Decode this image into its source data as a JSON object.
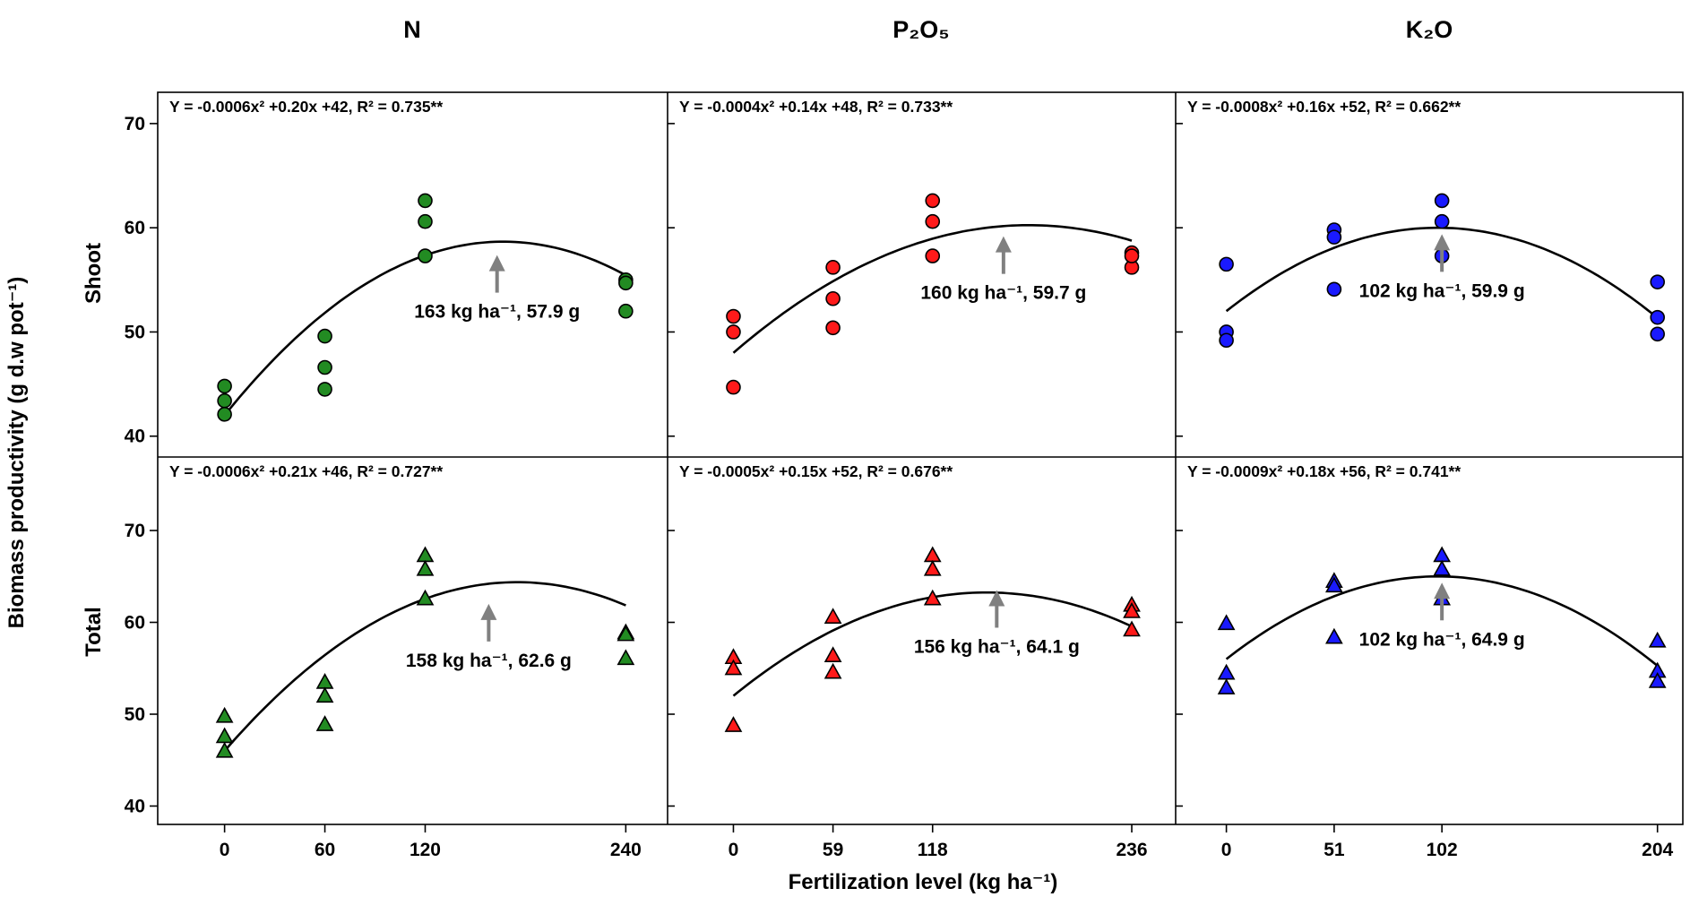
{
  "figure": {
    "ylabel": "Biomass productivity (g d.w pot⁻¹)",
    "xlabel": "Fertilization level (kg ha⁻¹)",
    "row_labels": [
      "Shoot",
      "Total"
    ],
    "column_titles": [
      "N",
      "P₂O₅",
      "K₂O"
    ]
  },
  "chart_data": [
    {
      "type": "scatter",
      "panel": "N-Shoot",
      "row_label": "Shoot",
      "column_title": "N",
      "marker": "circle",
      "color": "#228B22",
      "xticks": [
        0,
        60,
        120,
        240
      ],
      "xlim": [
        -40,
        265
      ],
      "ylim": [
        38,
        73
      ],
      "yticks": [
        40,
        50,
        60,
        70
      ],
      "points": [
        [
          0,
          44.8
        ],
        [
          0,
          43.4
        ],
        [
          0,
          42.1
        ],
        [
          60,
          49.6
        ],
        [
          60,
          46.6
        ],
        [
          60,
          44.5
        ],
        [
          120,
          62.6
        ],
        [
          120,
          60.6
        ],
        [
          120,
          57.3
        ],
        [
          240,
          55.0
        ],
        [
          240,
          54.7
        ],
        [
          240,
          52.0
        ]
      ],
      "fit": {
        "a": -0.0006,
        "b": 0.2,
        "c": 42,
        "peak_x": 163,
        "peak_y": 57.9
      },
      "equation": "Y = -0.0006x² +0.20x +42, R² = 0.735**",
      "annotation": "163 kg ha⁻¹, 57.9 g"
    },
    {
      "type": "scatter",
      "panel": "P2O5-Shoot",
      "row_label": "Shoot",
      "column_title": "P₂O₅",
      "marker": "circle",
      "color": "#FF1A1A",
      "xticks": [
        0,
        59,
        118,
        236
      ],
      "xlim": [
        -39,
        262
      ],
      "ylim": [
        38,
        73
      ],
      "yticks": [
        40,
        50,
        60,
        70
      ],
      "points": [
        [
          0,
          51.5
        ],
        [
          0,
          50.0
        ],
        [
          0,
          44.7
        ],
        [
          59,
          56.2
        ],
        [
          59,
          53.2
        ],
        [
          59,
          50.4
        ],
        [
          118,
          62.6
        ],
        [
          118,
          60.6
        ],
        [
          118,
          57.3
        ],
        [
          236,
          57.6
        ],
        [
          236,
          56.2
        ],
        [
          236,
          57.3
        ]
      ],
      "fit": {
        "a": -0.0004,
        "b": 0.14,
        "c": 48,
        "peak_x": 160,
        "peak_y": 59.7
      },
      "equation": "Y = -0.0004x² +0.14x +48, R² = 0.733**",
      "annotation": "160 kg ha⁻¹, 59.7 g"
    },
    {
      "type": "scatter",
      "panel": "K2O-Shoot",
      "row_label": "Shoot",
      "column_title": "K₂O",
      "marker": "circle",
      "color": "#1A1AFF",
      "xticks": [
        0,
        51,
        102,
        204
      ],
      "xlim": [
        -24,
        216
      ],
      "ylim": [
        38,
        73
      ],
      "yticks": [
        40,
        50,
        60,
        70
      ],
      "points": [
        [
          0,
          56.5
        ],
        [
          0,
          50.0
        ],
        [
          0,
          49.2
        ],
        [
          51,
          59.8
        ],
        [
          51,
          59.1
        ],
        [
          51,
          54.1
        ],
        [
          102,
          62.6
        ],
        [
          102,
          60.6
        ],
        [
          102,
          57.3
        ],
        [
          204,
          54.8
        ],
        [
          204,
          51.4
        ],
        [
          204,
          49.8
        ]
      ],
      "fit": {
        "a": -0.0008,
        "b": 0.16,
        "c": 52,
        "peak_x": 102,
        "peak_y": 59.9
      },
      "equation": "Y = -0.0008x² +0.16x +52, R² = 0.662**",
      "annotation": "102 kg ha⁻¹, 59.9 g"
    },
    {
      "type": "scatter",
      "panel": "N-Total",
      "row_label": "Total",
      "column_title": "N",
      "marker": "triangle",
      "color": "#228B22",
      "xticks": [
        0,
        60,
        120,
        240
      ],
      "xlim": [
        -40,
        265
      ],
      "ylim": [
        38,
        78
      ],
      "yticks": [
        40,
        50,
        60,
        70
      ],
      "points": [
        [
          0,
          49.8
        ],
        [
          0,
          47.6
        ],
        [
          0,
          46.0
        ],
        [
          60,
          53.5
        ],
        [
          60,
          52.0
        ],
        [
          60,
          48.9
        ],
        [
          120,
          67.3
        ],
        [
          120,
          65.8
        ],
        [
          120,
          62.6
        ],
        [
          240,
          58.9
        ],
        [
          240,
          58.7
        ],
        [
          240,
          56.1
        ]
      ],
      "fit": {
        "a": -0.0006,
        "b": 0.21,
        "c": 46,
        "peak_x": 158,
        "peak_y": 62.6
      },
      "equation": "Y = -0.0006x² +0.21x +46, R² = 0.727**",
      "annotation": "158 kg ha⁻¹, 62.6 g"
    },
    {
      "type": "scatter",
      "panel": "P2O5-Total",
      "row_label": "Total",
      "column_title": "P₂O₅",
      "marker": "triangle",
      "color": "#FF1A1A",
      "xticks": [
        0,
        59,
        118,
        236
      ],
      "xlim": [
        -39,
        262
      ],
      "ylim": [
        38,
        78
      ],
      "yticks": [
        40,
        50,
        60,
        70
      ],
      "points": [
        [
          0,
          56.2
        ],
        [
          0,
          55.0
        ],
        [
          0,
          48.8
        ],
        [
          59,
          60.6
        ],
        [
          59,
          56.4
        ],
        [
          59,
          54.6
        ],
        [
          118,
          67.3
        ],
        [
          118,
          65.8
        ],
        [
          118,
          62.6
        ],
        [
          236,
          61.9
        ],
        [
          236,
          61.2
        ],
        [
          236,
          59.2
        ]
      ],
      "fit": {
        "a": -0.0005,
        "b": 0.15,
        "c": 52,
        "peak_x": 156,
        "peak_y": 64.1
      },
      "equation": "Y = -0.0005x² +0.15x +52, R² = 0.676**",
      "annotation": "156 kg ha⁻¹, 64.1 g"
    },
    {
      "type": "scatter",
      "panel": "K2O-Total",
      "row_label": "Total",
      "column_title": "K₂O",
      "marker": "triangle",
      "color": "#1A1AFF",
      "xticks": [
        0,
        51,
        102,
        204
      ],
      "xlim": [
        -24,
        216
      ],
      "ylim": [
        38,
        78
      ],
      "yticks": [
        40,
        50,
        60,
        70
      ],
      "points": [
        [
          0,
          59.9
        ],
        [
          0,
          54.5
        ],
        [
          0,
          52.9
        ],
        [
          51,
          64.5
        ],
        [
          51,
          64.0
        ],
        [
          51,
          58.4
        ],
        [
          102,
          67.3
        ],
        [
          102,
          65.8
        ],
        [
          102,
          62.6
        ],
        [
          204,
          58.0
        ],
        [
          204,
          54.7
        ],
        [
          204,
          53.6
        ]
      ],
      "fit": {
        "a": -0.0009,
        "b": 0.18,
        "c": 56,
        "peak_x": 102,
        "peak_y": 64.9
      },
      "equation": "Y = -0.0009x² +0.18x +56, R² = 0.741**",
      "annotation": "102 kg ha⁻¹, 64.9 g"
    }
  ]
}
